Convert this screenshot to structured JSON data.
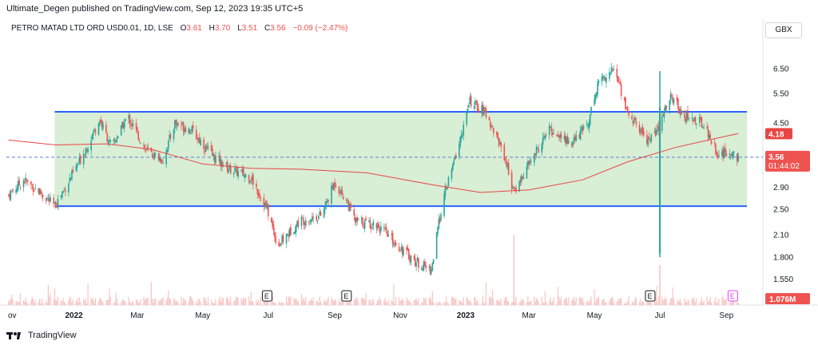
{
  "header": {
    "text": "Ultimate_Degen published on TradingView.com, Sep 12, 2023 19:35 UTC+5"
  },
  "legend": {
    "symbol": "PETRO MATAD LTD ORD USD0.01, 1D, LSE",
    "open_label": "O",
    "open": "3.61",
    "high_label": "H",
    "high": "3.70",
    "low_label": "L",
    "low": "3.51",
    "close_label": "C",
    "close": "3.56",
    "change": "−0.09 (−2.47%)"
  },
  "currency_button": "GBX",
  "footer": {
    "brand": "TradingView"
  },
  "colors": {
    "up": "#26a69a",
    "down": "#ef5350",
    "zone_fill": "#d8eed5",
    "zone_line": "#2962ff",
    "ma": "#e84545",
    "price_line": "#5b7fd6",
    "volume": "#f7c6c4"
  },
  "chart_data": {
    "type": "candlestick",
    "y_scale": "log",
    "ylim": [
      1.3,
      8.0
    ],
    "y_ticks": [
      "6.50",
      "5.50",
      "4.50",
      "3.56",
      "2.90",
      "2.50",
      "2.10",
      "1.800",
      "1.550"
    ],
    "y_tick_values": [
      6.5,
      5.5,
      4.5,
      3.56,
      2.9,
      2.5,
      2.1,
      1.8,
      1.55
    ],
    "x_labels": [
      "ov",
      "2022",
      "Mar",
      "May",
      "Jul",
      "Sep",
      "Nov",
      "2023",
      "Mar",
      "May",
      "Jul",
      "Sep"
    ],
    "x_label_dates": [
      "2021-11-01",
      "2022-01-01",
      "2022-03-01",
      "2022-05-01",
      "2022-07-01",
      "2022-09-01",
      "2022-11-01",
      "2023-01-01",
      "2023-03-01",
      "2023-05-01",
      "2023-07-01",
      "2023-09-01"
    ],
    "last_date": "2023-09-12",
    "range_zone": {
      "top": 4.85,
      "bottom": 2.55,
      "start": "2021-12-14"
    },
    "moving_average_label": "4.18",
    "last_price_label": "3.56",
    "countdown_label": "01:44:02",
    "volume_label": "1.076M",
    "earnings_markers": [
      {
        "date": "2022-06-30",
        "label": "E"
      },
      {
        "date": "2022-09-12",
        "label": "E"
      },
      {
        "date": "2023-06-22",
        "label": "E"
      },
      {
        "date": "2023-09-07",
        "label": "E"
      }
    ],
    "ma_path": [
      [
        "2021-11-01",
        4.0
      ],
      [
        "2021-12-15",
        3.87
      ],
      [
        "2022-02-01",
        3.9
      ],
      [
        "2022-03-15",
        3.75
      ],
      [
        "2022-05-01",
        3.4
      ],
      [
        "2022-06-15",
        3.3
      ],
      [
        "2022-08-01",
        3.28
      ],
      [
        "2022-10-01",
        3.2
      ],
      [
        "2022-12-01",
        2.95
      ],
      [
        "2023-01-15",
        2.8
      ],
      [
        "2023-03-01",
        2.85
      ],
      [
        "2023-04-20",
        3.05
      ],
      [
        "2023-06-01",
        3.45
      ],
      [
        "2023-07-15",
        3.8
      ],
      [
        "2023-08-15",
        4.0
      ],
      [
        "2023-09-12",
        4.18
      ]
    ],
    "price_path": [
      [
        "2021-11-01",
        2.75
      ],
      [
        "2021-11-15",
        3.05
      ],
      [
        "2021-12-01",
        2.8
      ],
      [
        "2021-12-14",
        2.55
      ],
      [
        "2022-01-05",
        3.4
      ],
      [
        "2022-01-25",
        4.6
      ],
      [
        "2022-02-05",
        3.8
      ],
      [
        "2022-02-20",
        4.7
      ],
      [
        "2022-03-10",
        3.7
      ],
      [
        "2022-03-25",
        3.5
      ],
      [
        "2022-04-05",
        4.5
      ],
      [
        "2022-04-20",
        4.3
      ],
      [
        "2022-05-10",
        3.6
      ],
      [
        "2022-05-25",
        3.3
      ],
      [
        "2022-06-15",
        3.1
      ],
      [
        "2022-06-30",
        2.5
      ],
      [
        "2022-07-10",
        1.95
      ],
      [
        "2022-07-30",
        2.3
      ],
      [
        "2022-08-20",
        2.4
      ],
      [
        "2022-09-01",
        3.0
      ],
      [
        "2022-09-12",
        2.65
      ],
      [
        "2022-09-20",
        2.3
      ],
      [
        "2022-10-10",
        2.25
      ],
      [
        "2022-10-30",
        1.95
      ],
      [
        "2022-11-15",
        1.75
      ],
      [
        "2022-11-30",
        1.65
      ],
      [
        "2022-12-10",
        2.6
      ],
      [
        "2022-12-25",
        3.8
      ],
      [
        "2023-01-05",
        5.2
      ],
      [
        "2023-01-20",
        4.8
      ],
      [
        "2023-02-05",
        3.7
      ],
      [
        "2023-02-15",
        2.8
      ],
      [
        "2023-03-01",
        3.4
      ],
      [
        "2023-03-20",
        4.3
      ],
      [
        "2023-04-10",
        3.9
      ],
      [
        "2023-04-25",
        4.5
      ],
      [
        "2023-05-05",
        6.0
      ],
      [
        "2023-05-20",
        6.5
      ],
      [
        "2023-06-01",
        4.8
      ],
      [
        "2023-06-20",
        4.0
      ],
      [
        "2023-06-30",
        4.3
      ],
      [
        "2023-07-10",
        5.4
      ],
      [
        "2023-07-25",
        4.7
      ],
      [
        "2023-08-10",
        4.5
      ],
      [
        "2023-08-25",
        3.6
      ],
      [
        "2023-09-05",
        3.7
      ],
      [
        "2023-09-12",
        3.56
      ]
    ],
    "spike": {
      "date": "2023-07-01",
      "high": 6.4,
      "low": 1.8
    }
  }
}
